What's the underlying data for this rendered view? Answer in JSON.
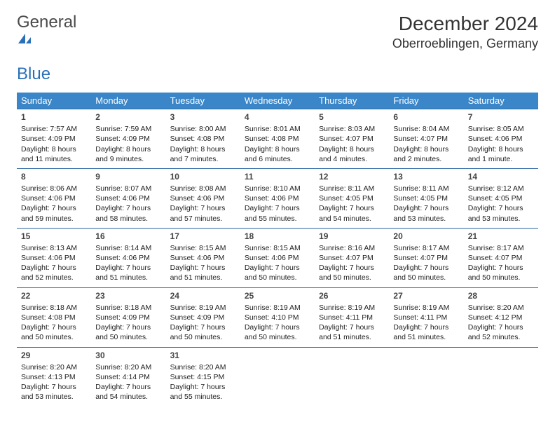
{
  "logo": {
    "text1": "General",
    "text2": "Blue"
  },
  "title": "December 2024",
  "location": "Oberroeblingen, Germany",
  "colors": {
    "header_bg": "#3a86c8",
    "row_border": "#2e6aa6",
    "logo_blue": "#2a70b8",
    "text": "#222222",
    "background": "#ffffff"
  },
  "weekdays": [
    "Sunday",
    "Monday",
    "Tuesday",
    "Wednesday",
    "Thursday",
    "Friday",
    "Saturday"
  ],
  "weeks": [
    [
      {
        "day": "1",
        "sunrise": "Sunrise: 7:57 AM",
        "sunset": "Sunset: 4:09 PM",
        "daylight": "Daylight: 8 hours and 11 minutes."
      },
      {
        "day": "2",
        "sunrise": "Sunrise: 7:59 AM",
        "sunset": "Sunset: 4:09 PM",
        "daylight": "Daylight: 8 hours and 9 minutes."
      },
      {
        "day": "3",
        "sunrise": "Sunrise: 8:00 AM",
        "sunset": "Sunset: 4:08 PM",
        "daylight": "Daylight: 8 hours and 7 minutes."
      },
      {
        "day": "4",
        "sunrise": "Sunrise: 8:01 AM",
        "sunset": "Sunset: 4:08 PM",
        "daylight": "Daylight: 8 hours and 6 minutes."
      },
      {
        "day": "5",
        "sunrise": "Sunrise: 8:03 AM",
        "sunset": "Sunset: 4:07 PM",
        "daylight": "Daylight: 8 hours and 4 minutes."
      },
      {
        "day": "6",
        "sunrise": "Sunrise: 8:04 AM",
        "sunset": "Sunset: 4:07 PM",
        "daylight": "Daylight: 8 hours and 2 minutes."
      },
      {
        "day": "7",
        "sunrise": "Sunrise: 8:05 AM",
        "sunset": "Sunset: 4:06 PM",
        "daylight": "Daylight: 8 hours and 1 minute."
      }
    ],
    [
      {
        "day": "8",
        "sunrise": "Sunrise: 8:06 AM",
        "sunset": "Sunset: 4:06 PM",
        "daylight": "Daylight: 7 hours and 59 minutes."
      },
      {
        "day": "9",
        "sunrise": "Sunrise: 8:07 AM",
        "sunset": "Sunset: 4:06 PM",
        "daylight": "Daylight: 7 hours and 58 minutes."
      },
      {
        "day": "10",
        "sunrise": "Sunrise: 8:08 AM",
        "sunset": "Sunset: 4:06 PM",
        "daylight": "Daylight: 7 hours and 57 minutes."
      },
      {
        "day": "11",
        "sunrise": "Sunrise: 8:10 AM",
        "sunset": "Sunset: 4:06 PM",
        "daylight": "Daylight: 7 hours and 55 minutes."
      },
      {
        "day": "12",
        "sunrise": "Sunrise: 8:11 AM",
        "sunset": "Sunset: 4:05 PM",
        "daylight": "Daylight: 7 hours and 54 minutes."
      },
      {
        "day": "13",
        "sunrise": "Sunrise: 8:11 AM",
        "sunset": "Sunset: 4:05 PM",
        "daylight": "Daylight: 7 hours and 53 minutes."
      },
      {
        "day": "14",
        "sunrise": "Sunrise: 8:12 AM",
        "sunset": "Sunset: 4:05 PM",
        "daylight": "Daylight: 7 hours and 53 minutes."
      }
    ],
    [
      {
        "day": "15",
        "sunrise": "Sunrise: 8:13 AM",
        "sunset": "Sunset: 4:06 PM",
        "daylight": "Daylight: 7 hours and 52 minutes."
      },
      {
        "day": "16",
        "sunrise": "Sunrise: 8:14 AM",
        "sunset": "Sunset: 4:06 PM",
        "daylight": "Daylight: 7 hours and 51 minutes."
      },
      {
        "day": "17",
        "sunrise": "Sunrise: 8:15 AM",
        "sunset": "Sunset: 4:06 PM",
        "daylight": "Daylight: 7 hours and 51 minutes."
      },
      {
        "day": "18",
        "sunrise": "Sunrise: 8:15 AM",
        "sunset": "Sunset: 4:06 PM",
        "daylight": "Daylight: 7 hours and 50 minutes."
      },
      {
        "day": "19",
        "sunrise": "Sunrise: 8:16 AM",
        "sunset": "Sunset: 4:07 PM",
        "daylight": "Daylight: 7 hours and 50 minutes."
      },
      {
        "day": "20",
        "sunrise": "Sunrise: 8:17 AM",
        "sunset": "Sunset: 4:07 PM",
        "daylight": "Daylight: 7 hours and 50 minutes."
      },
      {
        "day": "21",
        "sunrise": "Sunrise: 8:17 AM",
        "sunset": "Sunset: 4:07 PM",
        "daylight": "Daylight: 7 hours and 50 minutes."
      }
    ],
    [
      {
        "day": "22",
        "sunrise": "Sunrise: 8:18 AM",
        "sunset": "Sunset: 4:08 PM",
        "daylight": "Daylight: 7 hours and 50 minutes."
      },
      {
        "day": "23",
        "sunrise": "Sunrise: 8:18 AM",
        "sunset": "Sunset: 4:09 PM",
        "daylight": "Daylight: 7 hours and 50 minutes."
      },
      {
        "day": "24",
        "sunrise": "Sunrise: 8:19 AM",
        "sunset": "Sunset: 4:09 PM",
        "daylight": "Daylight: 7 hours and 50 minutes."
      },
      {
        "day": "25",
        "sunrise": "Sunrise: 8:19 AM",
        "sunset": "Sunset: 4:10 PM",
        "daylight": "Daylight: 7 hours and 50 minutes."
      },
      {
        "day": "26",
        "sunrise": "Sunrise: 8:19 AM",
        "sunset": "Sunset: 4:11 PM",
        "daylight": "Daylight: 7 hours and 51 minutes."
      },
      {
        "day": "27",
        "sunrise": "Sunrise: 8:19 AM",
        "sunset": "Sunset: 4:11 PM",
        "daylight": "Daylight: 7 hours and 51 minutes."
      },
      {
        "day": "28",
        "sunrise": "Sunrise: 8:20 AM",
        "sunset": "Sunset: 4:12 PM",
        "daylight": "Daylight: 7 hours and 52 minutes."
      }
    ],
    [
      {
        "day": "29",
        "sunrise": "Sunrise: 8:20 AM",
        "sunset": "Sunset: 4:13 PM",
        "daylight": "Daylight: 7 hours and 53 minutes."
      },
      {
        "day": "30",
        "sunrise": "Sunrise: 8:20 AM",
        "sunset": "Sunset: 4:14 PM",
        "daylight": "Daylight: 7 hours and 54 minutes."
      },
      {
        "day": "31",
        "sunrise": "Sunrise: 8:20 AM",
        "sunset": "Sunset: 4:15 PM",
        "daylight": "Daylight: 7 hours and 55 minutes."
      },
      null,
      null,
      null,
      null
    ]
  ]
}
